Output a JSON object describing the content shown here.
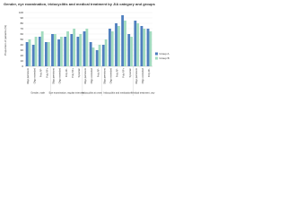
{
  "chart_data": {
    "type": "bar",
    "title": "Gender, eye examination, iridocyclitis and medical treatment by JIA category and groups",
    "y_label": "Proportion of patients (%)",
    "groups": [
      {
        "label": "Gender, male",
        "categories": [
          "Oligo persistent",
          "Oligo extended",
          "Poly RF-",
          "Poly RF+"
        ]
      },
      {
        "label": "Eye examination, regular intervals",
        "categories": [
          "Oligo persistent",
          "Oligo extended",
          "Poly RF-",
          "Poly RF+",
          "Systemic"
        ]
      },
      {
        "label": "Iridocyclitis at onset",
        "categories": [
          "Oligo persistent",
          "Oligo extended",
          "Poly RF-"
        ]
      },
      {
        "label": "Iridocyclitis and medication",
        "categories": [
          "Oligo persistent",
          "Oligo extended",
          "Poly RF-",
          "Poly RF+",
          "Systemic"
        ]
      },
      {
        "label": "Medical treatment, any",
        "categories": [
          "Oligo persistent",
          "Oligo extended",
          "Poly RF-"
        ]
      }
    ],
    "series": [
      {
        "name": "Group A",
        "color": "#4f7fbf",
        "values": [
          45,
          40,
          55,
          45,
          60,
          50,
          55,
          60,
          55,
          65,
          45,
          30,
          40,
          70,
          80,
          95,
          60,
          85,
          75,
          70
        ]
      },
      {
        "name": "Group B",
        "color": "#a3dcc0",
        "values": [
          50,
          55,
          65,
          45,
          60,
          55,
          65,
          70,
          60,
          70,
          35,
          40,
          50,
          65,
          75,
          85,
          55,
          80,
          70,
          65
        ]
      }
    ],
    "ylim": [
      0,
      100
    ],
    "yticks": [
      0,
      10,
      20,
      30,
      40,
      50,
      60,
      70,
      80,
      90,
      100
    ],
    "grid": true
  }
}
